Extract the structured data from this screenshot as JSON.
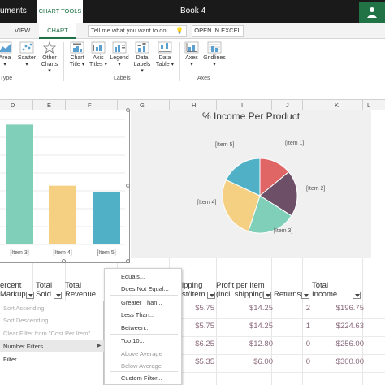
{
  "titlebar": {
    "left_text": "uments",
    "chart_tools": "CHART TOOLS",
    "title": "Book 4"
  },
  "tabs": {
    "view": "VIEW",
    "chart": "CHART",
    "tell_me": "Tell me what you want to do",
    "open_in_excel": "OPEN IN EXCEL"
  },
  "ribbon": {
    "buttons": [
      {
        "label1": "Area",
        "label2": "▾",
        "icon": "area-chart-icon"
      },
      {
        "label1": "Scatter",
        "label2": "▾",
        "icon": "scatter-chart-icon"
      },
      {
        "label1": "Other",
        "label2": "Charts ▾",
        "icon": "other-charts-icon"
      },
      {
        "label1": "Chart",
        "label2": "Title ▾",
        "icon": "chart-title-icon"
      },
      {
        "label1": "Axis",
        "label2": "Titles ▾",
        "icon": "axis-titles-icon"
      },
      {
        "label1": "Legend",
        "label2": "▾",
        "icon": "legend-icon"
      },
      {
        "label1": "Data",
        "label2": "Labels ▾",
        "icon": "data-labels-icon"
      },
      {
        "label1": "Data",
        "label2": "Table ▾",
        "icon": "data-table-icon"
      },
      {
        "label1": "Axes",
        "label2": "▾",
        "icon": "axes-icon"
      },
      {
        "label1": "Gridlines",
        "label2": "▾",
        "icon": "gridlines-icon"
      }
    ],
    "groups": {
      "type": "Type",
      "labels": "Labels",
      "axes": "Axes"
    }
  },
  "columns": [
    "D",
    "E",
    "F",
    "G",
    "H",
    "I",
    "J",
    "K",
    "L"
  ],
  "bar_chart": {
    "chart_data": {
      "type": "bar",
      "categories": [
        "[Item 3]",
        "[Item 4]",
        "[Item 5]"
      ],
      "values": [
        100,
        49,
        44
      ],
      "colors": [
        "#7fcfb9",
        "#f5cf82",
        "#4fb0c6"
      ]
    }
  },
  "pie_chart": {
    "title": "% Income Per Product",
    "chart_data": {
      "type": "pie",
      "categories": [
        "[Item 1]",
        "[Item 2]",
        "[Item 3]",
        "[Item 4]",
        "[Item 5]"
      ],
      "values": [
        14,
        20,
        21,
        27,
        18
      ],
      "colors": [
        "#e06666",
        "#6d5068",
        "#7fcfb9",
        "#f5cf82",
        "#4fb0c6"
      ]
    }
  },
  "table": {
    "headers": {
      "percent": "ercent",
      "markup": "Markup",
      "total_sold_1": "Total",
      "total_sold_2": "Sold",
      "total_rev_1": "Total",
      "total_rev_2": "Revenue",
      "shipping_1": "ipping",
      "shipping_2": "st/Item",
      "profit_1": "Profit per Item",
      "profit_2": "(incl. shipping)",
      "returns": "Returns",
      "income_1": "Total",
      "income_2": "Income"
    },
    "rows": [
      {
        "shipping": "$5.75",
        "profit": "$14.25",
        "returns": "2",
        "income": "$196.75"
      },
      {
        "shipping": "$5.75",
        "profit": "$14.25",
        "returns": "1",
        "income": "$224.63"
      },
      {
        "shipping": "$6.25",
        "profit": "$12.80",
        "returns": "0",
        "income": "$256.00"
      },
      {
        "shipping": "$5.35",
        "profit": "$6.00",
        "returns": "0",
        "income": "$300.00"
      }
    ]
  },
  "left_menu": {
    "items": [
      "Sort Ascending",
      "Sort Descending",
      "Clear Filter from \"Cost Per Item\"",
      "Number Filters",
      "Filter..."
    ]
  },
  "submenu": {
    "items": [
      "Equals...",
      "Does Not Equal...",
      "Greater Than...",
      "Less Than...",
      "Between...",
      "Top 10...",
      "Above Average",
      "Below Average",
      "Custom Filter..."
    ]
  }
}
